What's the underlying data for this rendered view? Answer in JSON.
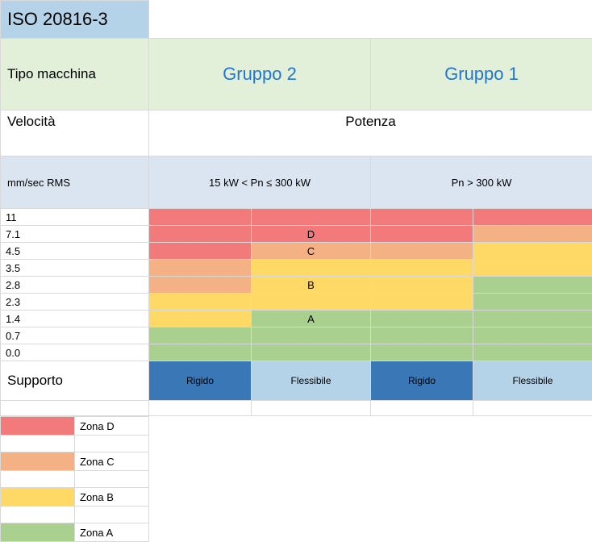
{
  "title": "ISO 20816-3",
  "headers": {
    "machine_type": "Tipo macchina",
    "group2": "Gruppo 2",
    "group1": "Gruppo 1",
    "speed": "Velocità",
    "power": "Potenza",
    "unit": "mm/sec RMS",
    "range2": "15 kW < Pn ≤ 300 kW",
    "range1": "Pn > 300 kW",
    "support": "Supporto",
    "rigid": "Rigido",
    "flexible": "Flessibile"
  },
  "colors": {
    "zoneD": "#f27a7a",
    "zoneC": "#f4b183",
    "zoneB": "#ffd966",
    "zoneA": "#a9d08e",
    "header_blue": "#b4d3e8",
    "header_green": "#e2efd9",
    "sub_blue": "#dbe5f1",
    "rigid_blue": "#3a77b7",
    "group_text": "#1f77d0"
  },
  "rows": [
    {
      "val": "11",
      "label": "",
      "g2r": "zoneD",
      "g2f": "zoneD",
      "g1r": "zoneD",
      "g1f": "zoneD"
    },
    {
      "val": "7.1",
      "label": "D",
      "g2r": "zoneD",
      "g2f": "zoneD",
      "g1r": "zoneD",
      "g1f": "zoneC"
    },
    {
      "val": "4.5",
      "label": "C",
      "g2r": "zoneD",
      "g2f": "zoneC",
      "g1r": "zoneC",
      "g1f": "zoneB"
    },
    {
      "val": "3.5",
      "label": "",
      "g2r": "zoneC",
      "g2f": "zoneB",
      "g1r": "zoneB",
      "g1f": "zoneB"
    },
    {
      "val": "2.8",
      "label": "B",
      "g2r": "zoneC",
      "g2f": "zoneB",
      "g1r": "zoneB",
      "g1f": "zoneA"
    },
    {
      "val": "2.3",
      "label": "",
      "g2r": "zoneB",
      "g2f": "zoneB",
      "g1r": "zoneB",
      "g1f": "zoneA"
    },
    {
      "val": "1.4",
      "label": "A",
      "g2r": "zoneB",
      "g2f": "zoneA",
      "g1r": "zoneA",
      "g1f": "zoneA"
    },
    {
      "val": "0.7",
      "label": "",
      "g2r": "zoneA",
      "g2f": "zoneA",
      "g1r": "zoneA",
      "g1f": "zoneA"
    },
    {
      "val": "0.0",
      "label": "",
      "g2r": "zoneA",
      "g2f": "zoneA",
      "g1r": "zoneA",
      "g1f": "zoneA"
    }
  ],
  "legend": [
    {
      "color": "zoneD",
      "label": "Zona D"
    },
    {
      "color": "zoneC",
      "label": "Zona C"
    },
    {
      "color": "zoneB",
      "label": "Zona B"
    },
    {
      "color": "zoneA",
      "label": "Zona A"
    }
  ]
}
